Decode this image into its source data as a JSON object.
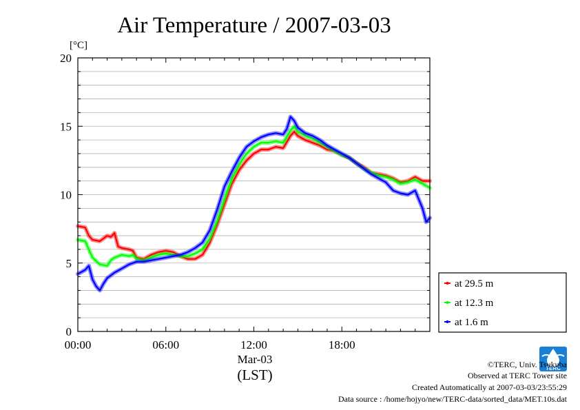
{
  "chart_data": {
    "type": "line",
    "title": "Air Temperature / 2007-03-03",
    "ylabel": "[°C]",
    "xlabel_date": "Mar-03",
    "xlabel_unit": "(LST)",
    "ylim": [
      0,
      20
    ],
    "xlim": [
      0,
      24
    ],
    "yticks": [
      "0",
      "5",
      "10",
      "15",
      "20"
    ],
    "xticks": [
      {
        "value": 0,
        "label": "00:00"
      },
      {
        "value": 6,
        "label": "06:00"
      },
      {
        "value": 12,
        "label": "12:00"
      },
      {
        "value": 18,
        "label": "18:00"
      }
    ],
    "grid": true,
    "legend_position": "right-bottom",
    "series": [
      {
        "name": "at 29.5 m",
        "color": "#ff0000",
        "x": [
          0,
          0.5,
          0.75,
          1,
          1.5,
          2,
          2.25,
          2.5,
          2.75,
          3,
          3.5,
          3.75,
          4,
          4.5,
          5,
          5.5,
          6,
          6.5,
          7,
          7.5,
          8,
          8.5,
          9,
          9.5,
          10,
          10.5,
          11,
          11.5,
          12,
          12.5,
          13,
          13.5,
          14,
          14.5,
          14.75,
          15,
          15.5,
          16,
          16.5,
          17,
          17.5,
          18,
          18.5,
          19,
          19.5,
          20,
          20.5,
          21,
          21.5,
          22,
          22.5,
          23,
          23.5,
          24
        ],
        "y": [
          7.7,
          7.6,
          7.0,
          6.7,
          6.6,
          7.0,
          6.9,
          7.2,
          6.2,
          6.1,
          6.0,
          5.9,
          5.4,
          5.3,
          5.6,
          5.8,
          5.9,
          5.8,
          5.5,
          5.3,
          5.3,
          5.6,
          6.5,
          7.8,
          9.3,
          10.8,
          11.8,
          12.5,
          13.0,
          13.3,
          13.3,
          13.5,
          13.4,
          14.3,
          14.6,
          14.3,
          14.0,
          13.8,
          13.6,
          13.3,
          13.2,
          12.9,
          12.7,
          12.3,
          12.0,
          11.6,
          11.5,
          11.4,
          11.2,
          10.9,
          11.0,
          11.3,
          11.0,
          11.0
        ]
      },
      {
        "name": "at 12.3 m",
        "color": "#00ff00",
        "x": [
          0,
          0.5,
          0.75,
          1,
          1.5,
          2,
          2.25,
          2.5,
          2.75,
          3,
          3.5,
          3.75,
          4,
          4.5,
          5,
          5.5,
          6,
          6.5,
          7,
          7.5,
          8,
          8.5,
          9,
          9.5,
          10,
          10.5,
          11,
          11.5,
          12,
          12.5,
          13,
          13.5,
          14,
          14.5,
          14.75,
          15,
          15.5,
          16,
          16.5,
          17,
          17.5,
          18,
          18.5,
          19,
          19.5,
          20,
          20.5,
          21,
          21.5,
          22,
          22.5,
          23,
          23.5,
          24
        ],
        "y": [
          6.7,
          6.6,
          6.0,
          5.4,
          4.9,
          4.8,
          5.2,
          5.4,
          5.5,
          5.6,
          5.5,
          5.6,
          5.3,
          5.2,
          5.4,
          5.6,
          5.7,
          5.6,
          5.5,
          5.5,
          5.7,
          6.0,
          6.8,
          8.1,
          9.7,
          11.2,
          12.2,
          13.0,
          13.5,
          13.8,
          13.8,
          13.9,
          13.8,
          14.7,
          15.0,
          14.6,
          14.3,
          14.1,
          13.8,
          13.5,
          13.2,
          12.9,
          12.7,
          12.3,
          11.9,
          11.6,
          11.4,
          11.3,
          11.1,
          10.8,
          10.9,
          11.1,
          10.8,
          10.5
        ]
      },
      {
        "name": "at 1.6 m",
        "color": "#0000ff",
        "x": [
          0,
          0.5,
          0.75,
          1,
          1.25,
          1.5,
          1.75,
          2,
          2.5,
          3,
          3.5,
          4,
          4.5,
          5,
          5.5,
          6,
          6.5,
          7,
          7.5,
          8,
          8.5,
          9,
          9.5,
          10,
          10.5,
          11,
          11.5,
          12,
          12.5,
          13,
          13.5,
          14,
          14.25,
          14.5,
          14.75,
          15,
          15.5,
          16,
          16.5,
          17,
          17.5,
          18,
          18.5,
          19,
          19.5,
          20,
          20.5,
          21,
          21.5,
          22,
          22.5,
          23,
          23.5,
          23.75,
          24
        ],
        "y": [
          4.2,
          4.5,
          4.8,
          3.8,
          3.3,
          3.0,
          3.5,
          3.9,
          4.3,
          4.6,
          4.9,
          5.1,
          5.1,
          5.2,
          5.3,
          5.4,
          5.5,
          5.6,
          5.8,
          6.1,
          6.5,
          7.4,
          8.9,
          10.6,
          11.7,
          12.7,
          13.5,
          13.9,
          14.2,
          14.4,
          14.5,
          14.4,
          14.8,
          15.7,
          15.4,
          14.9,
          14.5,
          14.3,
          14.0,
          13.6,
          13.3,
          13.0,
          12.7,
          12.3,
          11.9,
          11.5,
          11.2,
          10.9,
          10.3,
          10.1,
          10.0,
          10.3,
          9.0,
          8.0,
          8.3
        ]
      }
    ]
  },
  "footer": {
    "copyright": "©TERC, Univ. Tsukuba",
    "observed": "Observed at TERC Tower site",
    "created": "Created Automatically at 2007-03-03/23:55:29",
    "source": "Data source : /home/hojyo/new/TERC-data/sorted_data/MET.10s.dat"
  },
  "logo": {
    "text": "TERC",
    "color": "#1a7fd6"
  }
}
